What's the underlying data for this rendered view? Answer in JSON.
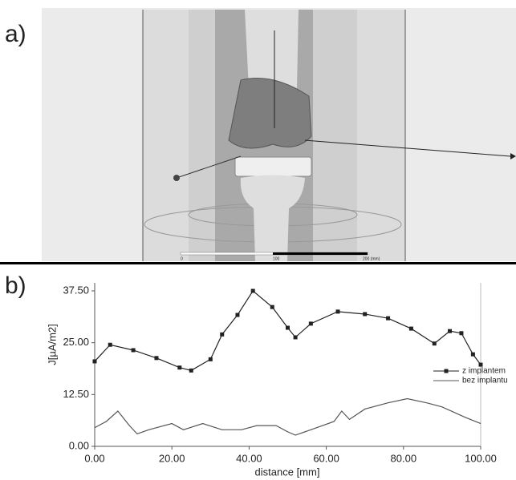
{
  "panel_a": {
    "label": "a)",
    "scale_labels": [
      "0",
      "100",
      "200 (mm)"
    ]
  },
  "chart_data": {
    "type": "line",
    "panel_label": "b)",
    "xlabel": "distance [mm]",
    "ylabel": "J[µA/m2]",
    "xlim": [
      0,
      100
    ],
    "ylim": [
      0,
      37.5
    ],
    "xticks": [
      {
        "value": 0,
        "label": "0.00"
      },
      {
        "value": 20,
        "label": "20.00"
      },
      {
        "value": 40,
        "label": "40.00"
      },
      {
        "value": 60,
        "label": "60.00"
      },
      {
        "value": 80,
        "label": "80.00"
      },
      {
        "value": 100,
        "label": "100.00"
      }
    ],
    "yticks": [
      {
        "value": 0,
        "label": "0.00"
      },
      {
        "value": 12.5,
        "label": "12.50"
      },
      {
        "value": 25,
        "label": "25.00"
      },
      {
        "value": 37.5,
        "label": "37.50"
      }
    ],
    "legend": "upper right",
    "series": [
      {
        "name": "z implantem",
        "color": "#222222",
        "marker": "square",
        "x": [
          0,
          4,
          10,
          16,
          22,
          25,
          30,
          33,
          37,
          41,
          46,
          50,
          52,
          56,
          63,
          70,
          76,
          82,
          88,
          92,
          95,
          98,
          100
        ],
        "values": [
          20.5,
          24.5,
          23.2,
          21.3,
          19,
          18.3,
          21,
          27,
          31.7,
          37.5,
          33.6,
          28.6,
          26.3,
          29.6,
          32.5,
          31.9,
          30.9,
          28.4,
          24.8,
          27.8,
          27.3,
          22.2,
          19.7
        ]
      },
      {
        "name": "bez implantu",
        "color": "#555555",
        "x": [
          0,
          3,
          6,
          9,
          11,
          14,
          20,
          23,
          28,
          33,
          38,
          42,
          47,
          50,
          52,
          56,
          62,
          64,
          66,
          70,
          76,
          81,
          86,
          90,
          96,
          100
        ],
        "values": [
          4.5,
          6,
          8.5,
          5,
          3,
          4,
          5.5,
          4,
          5.5,
          4,
          4,
          5,
          5,
          3.5,
          2.7,
          4,
          6,
          8.5,
          6.5,
          9,
          10.5,
          11.5,
          10.5,
          9.5,
          7,
          5.5
        ]
      }
    ]
  }
}
